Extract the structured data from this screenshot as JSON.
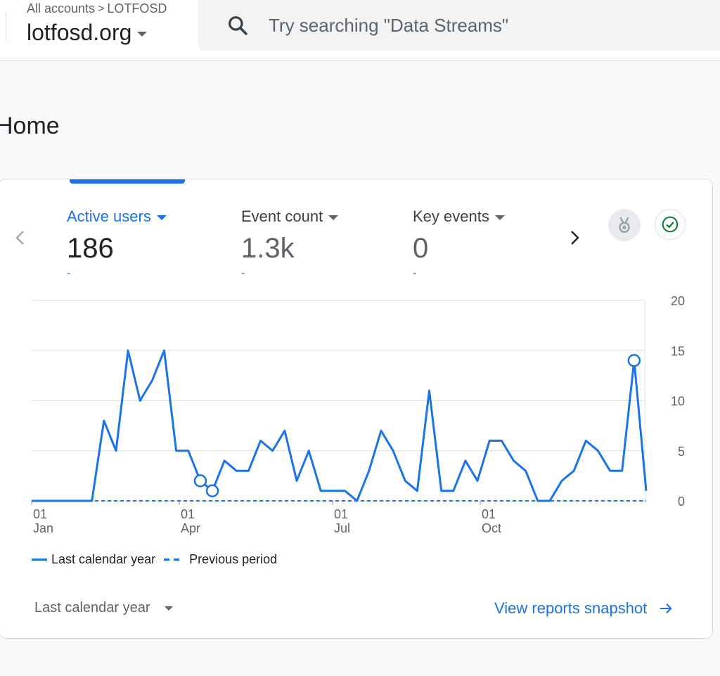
{
  "header": {
    "breadcrumb": {
      "all_accounts": "All accounts",
      "separator": ">",
      "account": "LOTFOSD"
    },
    "property_name": "lotfosd.org",
    "search_placeholder": "Try searching \"Data Streams\""
  },
  "page": {
    "title": "Home"
  },
  "card": {
    "metrics": [
      {
        "label": "Active users",
        "value": "186",
        "change": "-",
        "active": true
      },
      {
        "label": "Event count",
        "value": "1.3k",
        "change": "-",
        "active": false
      },
      {
        "label": "Key events",
        "value": "0",
        "change": "-",
        "active": false
      }
    ],
    "icons": {
      "prev": "chevron-left-icon",
      "next": "chevron-right-icon",
      "medal": "medal-icon",
      "check": "check-circle-icon"
    },
    "legend": {
      "current": "Last calendar year",
      "previous": "Previous period"
    },
    "footer": {
      "period_selector": "Last calendar year",
      "snapshot_link": "View reports snapshot"
    },
    "colors": {
      "accent": "#1a73e8",
      "check": "#188038"
    }
  },
  "chart_data": {
    "type": "line",
    "x_ticks": [
      {
        "day": "01",
        "month": "Jan"
      },
      {
        "day": "01",
        "month": "Apr"
      },
      {
        "day": "01",
        "month": "Jul"
      },
      {
        "day": "01",
        "month": "Oct"
      }
    ],
    "y_ticks": [
      "20",
      "15",
      "10",
      "5",
      "0"
    ],
    "ylim": [
      0,
      20
    ],
    "series": [
      {
        "name": "Last calendar year",
        "style": "solid",
        "values": [
          0,
          0,
          0,
          0,
          0,
          0,
          8,
          5,
          15,
          10,
          12,
          15,
          5,
          5,
          2,
          1,
          4,
          3,
          3,
          6,
          5,
          7,
          2,
          5,
          1,
          1,
          1,
          0,
          3,
          7,
          5,
          2,
          1,
          11,
          1,
          1,
          4,
          2,
          6,
          6,
          4,
          3,
          0,
          0,
          2,
          3,
          6,
          5,
          3,
          3,
          14,
          1
        ],
        "highlighted_points": [
          14,
          15,
          50
        ]
      },
      {
        "name": "Previous period",
        "style": "dashed",
        "values": [
          0,
          0,
          0,
          0,
          0,
          0,
          0,
          0,
          0,
          0,
          0,
          0,
          0,
          0,
          0,
          0,
          0,
          0,
          0,
          0,
          0,
          0,
          0,
          0,
          0,
          0,
          0,
          0,
          0,
          0,
          0,
          0,
          0,
          0,
          0,
          0,
          0,
          0,
          0,
          0,
          0,
          0,
          0,
          0,
          0,
          0,
          0,
          0,
          0,
          0,
          0,
          0
        ]
      }
    ],
    "grid": true,
    "legend_position": "bottom-left"
  }
}
